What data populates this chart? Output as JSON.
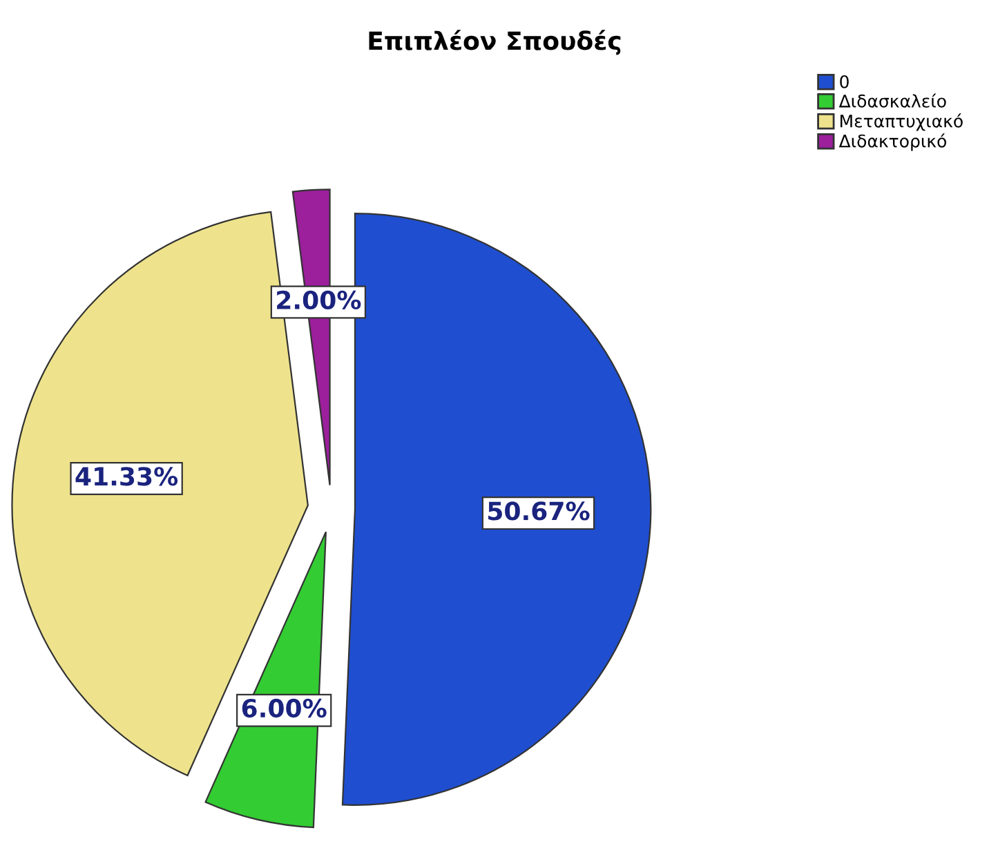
{
  "chart_data": {
    "type": "pie",
    "title": "Επιπλέον Σπουδές",
    "categories": [
      "0",
      "Διδασκαλείο",
      "Μεταπτυχιακό",
      "Διδακτορικό"
    ],
    "values": [
      50.67,
      6.0,
      41.33,
      2.0
    ],
    "colors": [
      "#1f4fd0",
      "#33cc33",
      "#eee38c",
      "#9c1f9c"
    ],
    "value_labels": [
      "50.67%",
      "6.00%",
      "41.33%",
      "2.00%"
    ],
    "legend": "top right"
  }
}
